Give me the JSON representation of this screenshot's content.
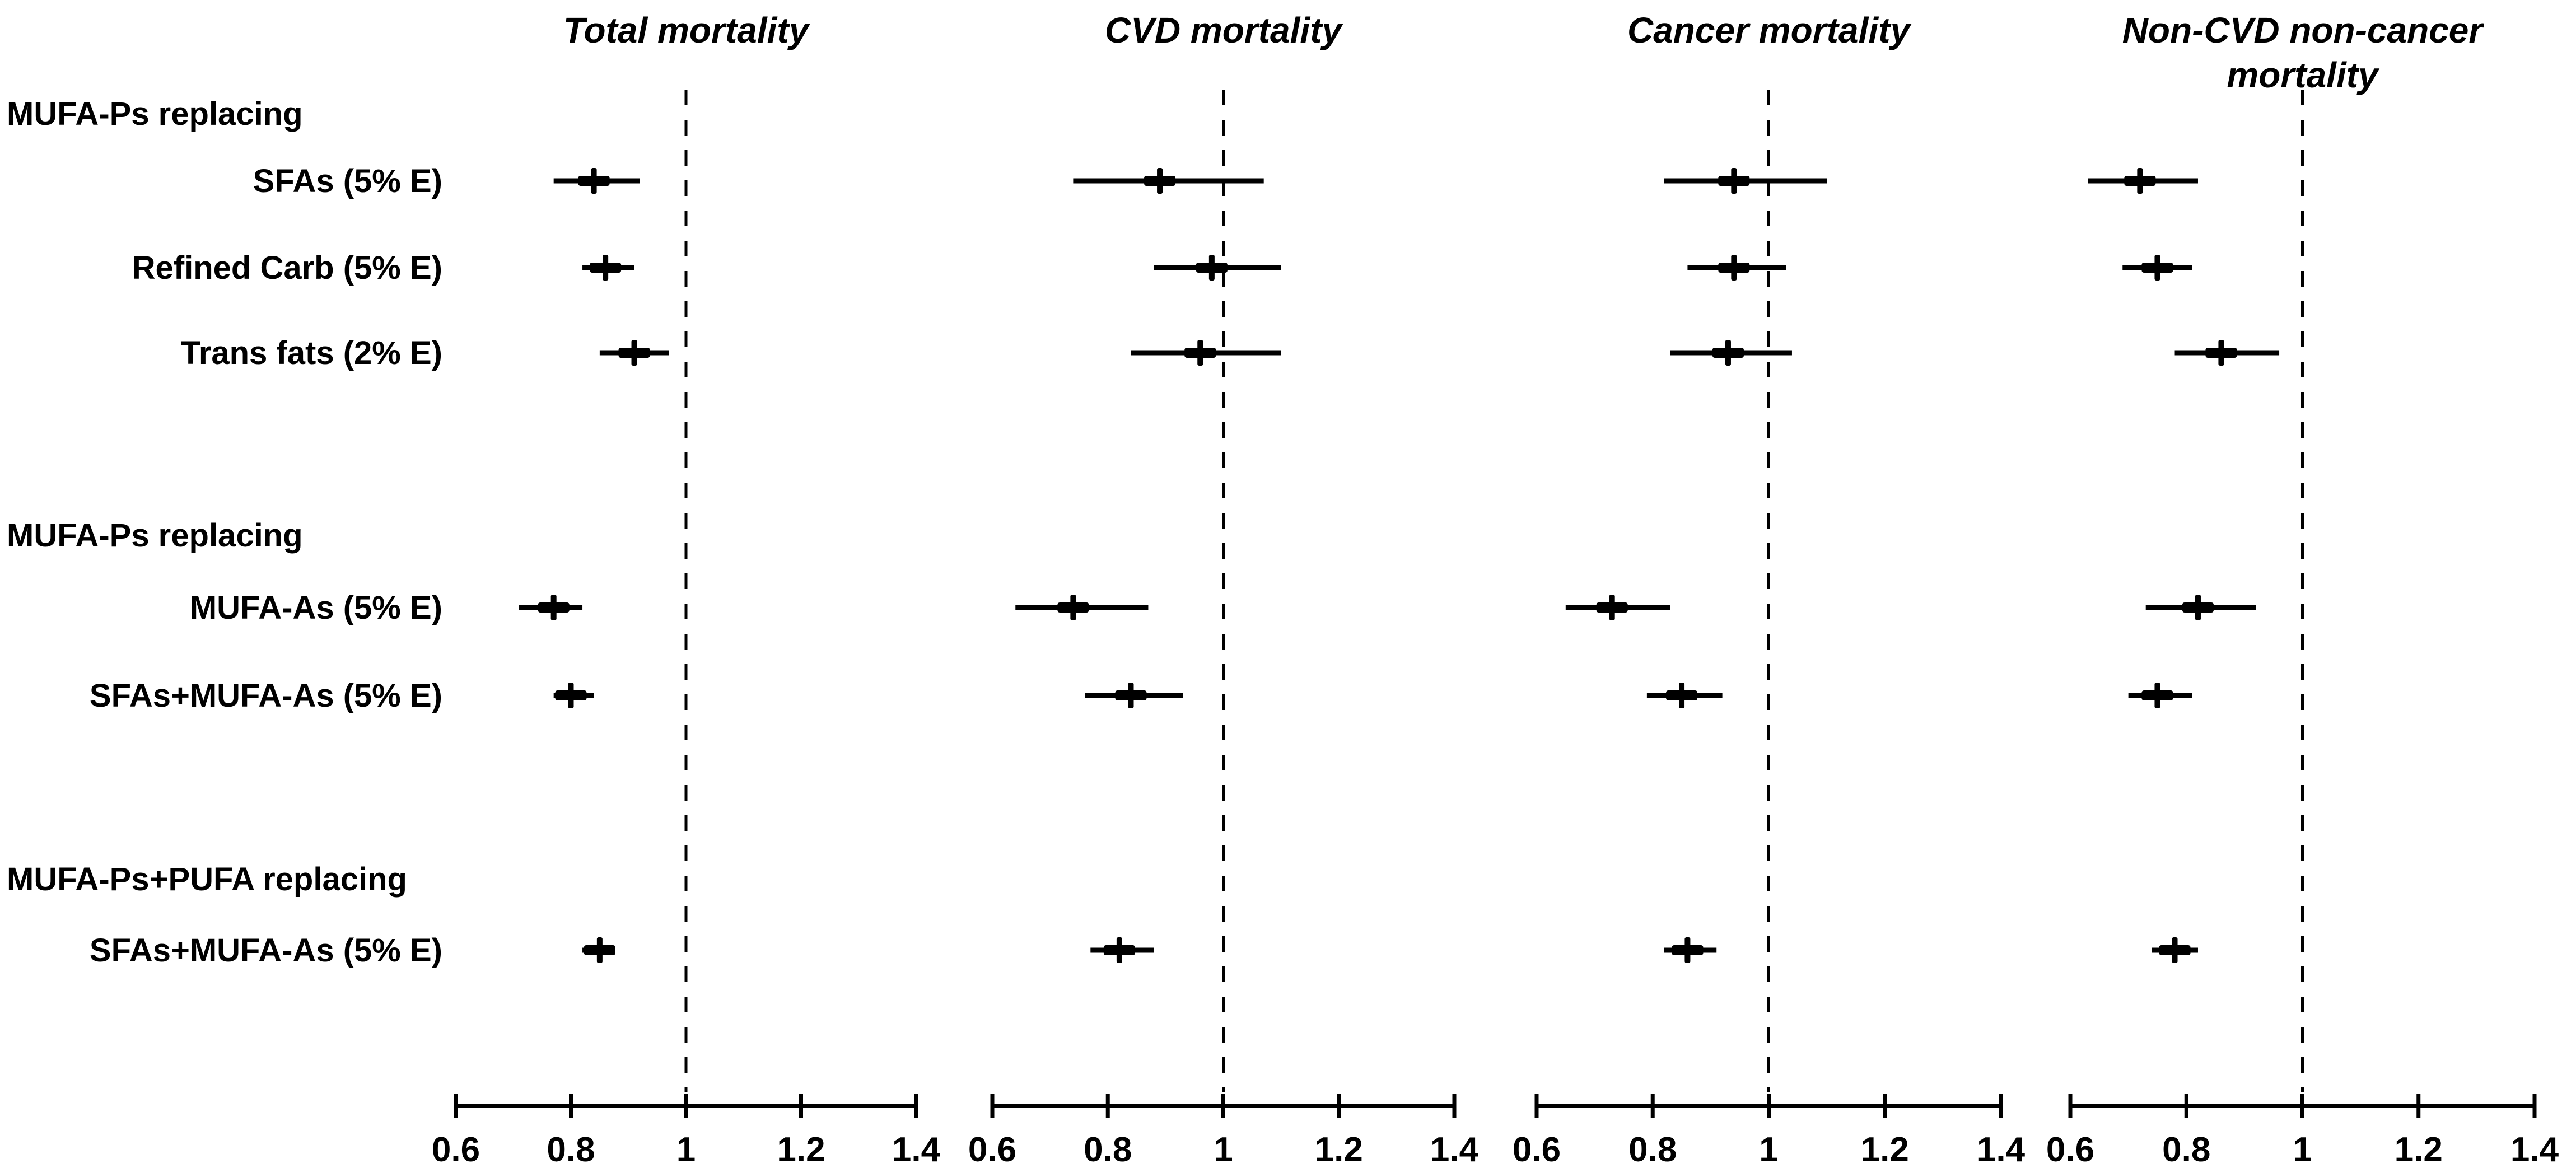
{
  "figure": {
    "background_color": "#ffffff",
    "ink_color": "#000000",
    "description": "Forest plot of hazard ratios for mortality outcomes by nutrient substitution"
  },
  "chart_data": {
    "type": "scatter",
    "subtype": "forest-plot",
    "x_axis": {
      "range": [
        0.6,
        1.4
      ],
      "ticks": [
        0.6,
        0.8,
        1.0,
        1.2,
        1.4
      ],
      "tick_labels": [
        "0.6",
        "0.8",
        "1",
        "1.2",
        "1.4"
      ],
      "reference_line_value": 1.0,
      "reference_line_style": "dashed",
      "grid": false
    },
    "row_groups": [
      {
        "header": "MUFA-Ps replacing",
        "row_indices": [
          0,
          1,
          2
        ]
      },
      {
        "header": "MUFA-Ps replacing",
        "row_indices": [
          3,
          4
        ]
      },
      {
        "header": "MUFA-Ps+PUFA replacing",
        "row_indices": [
          5
        ]
      }
    ],
    "rows": [
      "SFAs (5% E)",
      "Refined Carb (5% E)",
      "Trans fats (2% E)",
      "MUFA-As (5% E)",
      "SFAs+MUFA-As (5% E)",
      "SFAs+MUFA-As (5% E)"
    ],
    "panels": [
      {
        "title": "Total mortality",
        "title_lines": [
          "Total mortality"
        ],
        "estimates": [
          {
            "row": "SFAs (5% E)",
            "estimate": 0.84,
            "ci_low": 0.77,
            "ci_high": 0.92
          },
          {
            "row": "Refined Carb (5% E)",
            "estimate": 0.86,
            "ci_low": 0.82,
            "ci_high": 0.91
          },
          {
            "row": "Trans fats (2% E)",
            "estimate": 0.91,
            "ci_low": 0.85,
            "ci_high": 0.97
          },
          {
            "row": "MUFA-As (5% E)",
            "estimate": 0.77,
            "ci_low": 0.71,
            "ci_high": 0.82
          },
          {
            "row": "SFAs+MUFA-As (5% E)",
            "estimate": 0.8,
            "ci_low": 0.77,
            "ci_high": 0.84
          },
          {
            "row": "SFAs+MUFA-As (5% E)",
            "estimate": 0.85,
            "ci_low": 0.82,
            "ci_high": 0.87
          }
        ]
      },
      {
        "title": "CVD mortality",
        "title_lines": [
          "CVD mortality"
        ],
        "estimates": [
          {
            "row": "SFAs (5% E)",
            "estimate": 0.89,
            "ci_low": 0.74,
            "ci_high": 1.07
          },
          {
            "row": "Refined Carb (5% E)",
            "estimate": 0.98,
            "ci_low": 0.88,
            "ci_high": 1.1
          },
          {
            "row": "Trans fats (2% E)",
            "estimate": 0.96,
            "ci_low": 0.84,
            "ci_high": 1.1
          },
          {
            "row": "MUFA-As (5% E)",
            "estimate": 0.74,
            "ci_low": 0.64,
            "ci_high": 0.87
          },
          {
            "row": "SFAs+MUFA-As (5% E)",
            "estimate": 0.84,
            "ci_low": 0.76,
            "ci_high": 0.93
          },
          {
            "row": "SFAs+MUFA-As (5% E)",
            "estimate": 0.82,
            "ci_low": 0.77,
            "ci_high": 0.88
          }
        ]
      },
      {
        "title": "Cancer mortality",
        "title_lines": [
          "Cancer mortality"
        ],
        "estimates": [
          {
            "row": "SFAs (5% E)",
            "estimate": 0.94,
            "ci_low": 0.82,
            "ci_high": 1.1
          },
          {
            "row": "Refined Carb (5% E)",
            "estimate": 0.94,
            "ci_low": 0.86,
            "ci_high": 1.03
          },
          {
            "row": "Trans fats (2% E)",
            "estimate": 0.93,
            "ci_low": 0.83,
            "ci_high": 1.04
          },
          {
            "row": "MUFA-As (5% E)",
            "estimate": 0.73,
            "ci_low": 0.65,
            "ci_high": 0.83
          },
          {
            "row": "SFAs+MUFA-As (5% E)",
            "estimate": 0.85,
            "ci_low": 0.79,
            "ci_high": 0.92
          },
          {
            "row": "SFAs+MUFA-As (5% E)",
            "estimate": 0.86,
            "ci_low": 0.82,
            "ci_high": 0.91
          }
        ]
      },
      {
        "title": "Non-CVD non-cancer mortality",
        "title_lines": [
          "Non-CVD non-cancer",
          "mortality"
        ],
        "estimates": [
          {
            "row": "SFAs (5% E)",
            "estimate": 0.72,
            "ci_low": 0.63,
            "ci_high": 0.82
          },
          {
            "row": "Refined Carb (5% E)",
            "estimate": 0.75,
            "ci_low": 0.69,
            "ci_high": 0.81
          },
          {
            "row": "Trans fats (2% E)",
            "estimate": 0.86,
            "ci_low": 0.78,
            "ci_high": 0.96
          },
          {
            "row": "MUFA-As (5% E)",
            "estimate": 0.82,
            "ci_low": 0.73,
            "ci_high": 0.92
          },
          {
            "row": "SFAs+MUFA-As (5% E)",
            "estimate": 0.75,
            "ci_low": 0.7,
            "ci_high": 0.81
          },
          {
            "row": "SFAs+MUFA-As (5% E)",
            "estimate": 0.78,
            "ci_low": 0.74,
            "ci_high": 0.82
          }
        ]
      }
    ]
  }
}
